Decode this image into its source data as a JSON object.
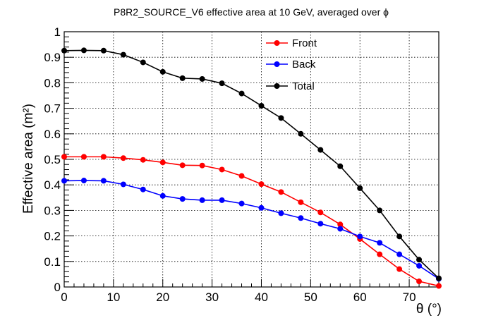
{
  "chart_data": {
    "type": "line",
    "title": "P8R2_SOURCE_V6 effective area at 10 GeV, averaged over ϕ",
    "xlabel": "θ (°)",
    "ylabel": "Effective area (m²)",
    "xlim": [
      0,
      76
    ],
    "ylim": [
      0,
      1
    ],
    "grid": true,
    "legend_position": "top-center",
    "x_ticks": [
      0,
      10,
      20,
      30,
      40,
      50,
      60,
      70
    ],
    "y_ticks": [
      0,
      0.1,
      0.2,
      0.3,
      0.4,
      0.5,
      0.6,
      0.7,
      0.8,
      0.9,
      1
    ],
    "x_tick_labels": [
      "0",
      "10",
      "20",
      "30",
      "40",
      "50",
      "60",
      "70"
    ],
    "y_tick_labels": [
      "0",
      "0.1",
      "0.2",
      "0.3",
      "0.4",
      "0.5",
      "0.6",
      "0.7",
      "0.8",
      "0.9",
      "1"
    ],
    "x": [
      0,
      4,
      8,
      12,
      16,
      20,
      24,
      28,
      32,
      36,
      40,
      44,
      48,
      52,
      56,
      60,
      64,
      68,
      72,
      76
    ],
    "series": [
      {
        "name": "Front",
        "color": "#ff0000",
        "values": [
          0.51,
          0.51,
          0.51,
          0.505,
          0.498,
          0.488,
          0.477,
          0.476,
          0.46,
          0.435,
          0.403,
          0.372,
          0.332,
          0.292,
          0.245,
          0.188,
          0.128,
          0.07,
          0.022,
          0.004
        ]
      },
      {
        "name": "Back",
        "color": "#0000ff",
        "values": [
          0.416,
          0.417,
          0.416,
          0.402,
          0.382,
          0.357,
          0.345,
          0.34,
          0.34,
          0.327,
          0.31,
          0.289,
          0.27,
          0.248,
          0.228,
          0.198,
          0.173,
          0.128,
          0.083,
          0.032
        ]
      },
      {
        "name": "Total",
        "color": "#000000",
        "values": [
          0.926,
          0.927,
          0.926,
          0.91,
          0.88,
          0.843,
          0.818,
          0.815,
          0.798,
          0.758,
          0.71,
          0.662,
          0.6,
          0.537,
          0.473,
          0.387,
          0.3,
          0.198,
          0.107,
          0.034
        ]
      }
    ]
  }
}
